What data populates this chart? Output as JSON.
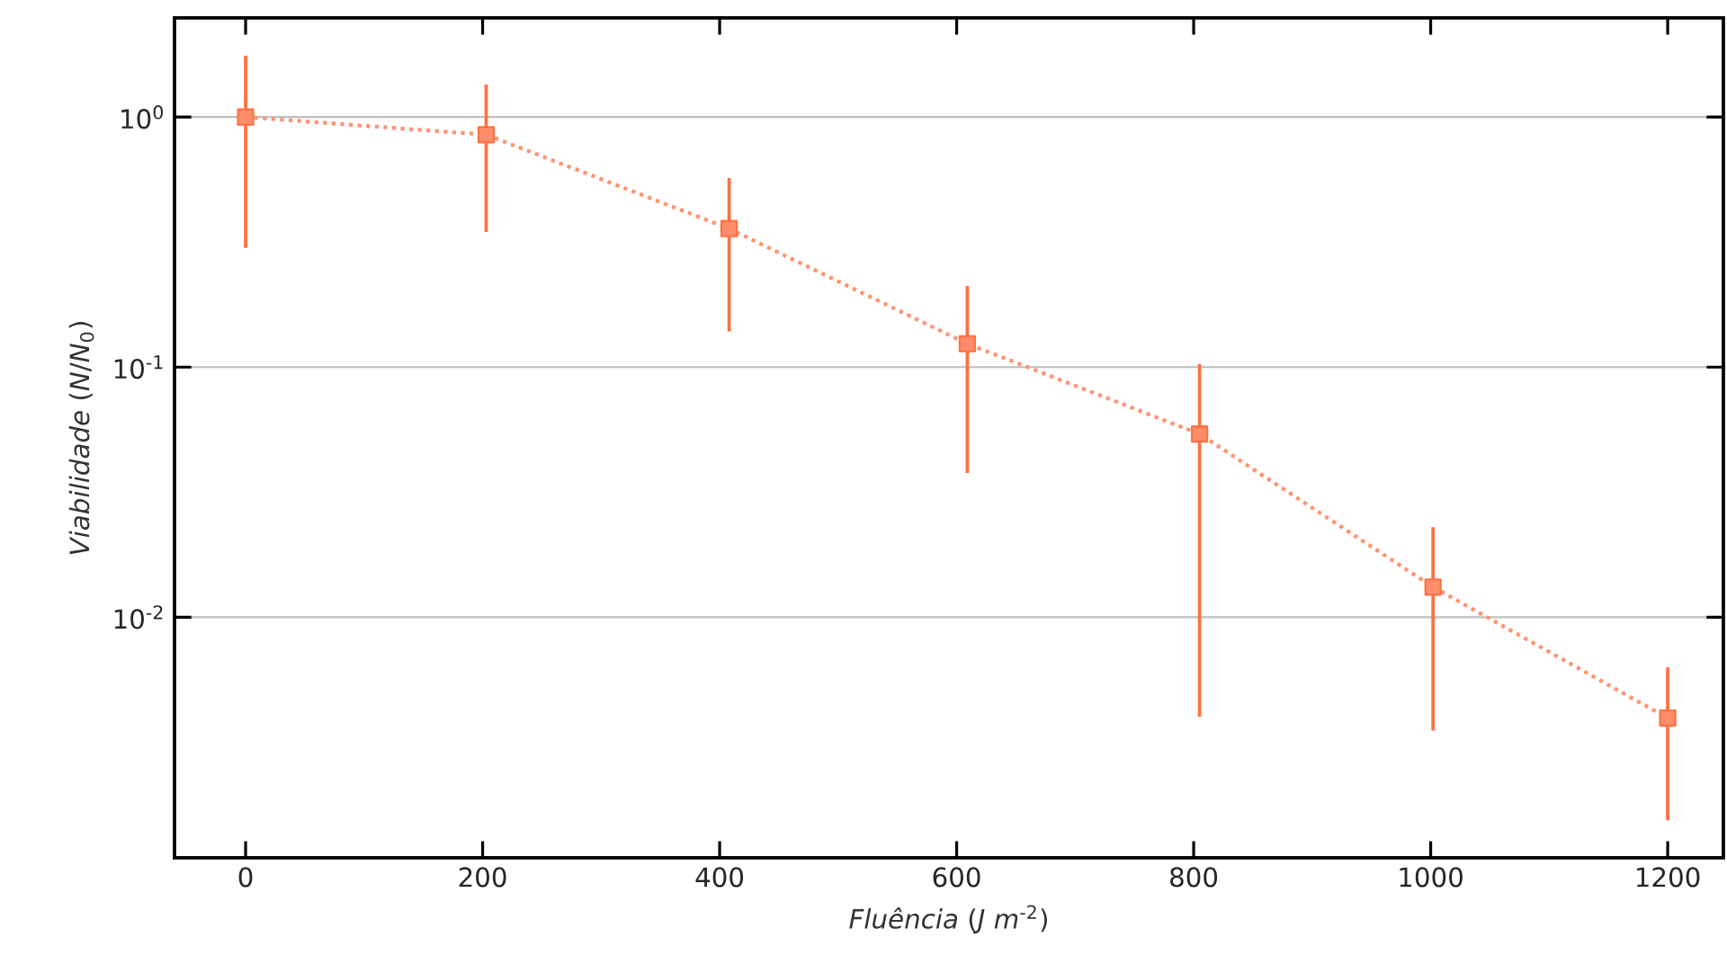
{
  "chart_data": {
    "type": "line",
    "xlabel": "*Fluência* (*J m*$^{-2}$)",
    "ylabel": "*Viabilidade* (*N*/*N*$_{0}$)",
    "log": "y",
    "grid": "y",
    "marker": "square",
    "line_style": "dotted",
    "xlim": [
      -60,
      1247
    ],
    "ylim": [
      0.00109,
      2.49
    ],
    "xticks": [
      0,
      200,
      400,
      600,
      800,
      1000,
      1200
    ],
    "yticks": [
      {
        "value": 1,
        "label": "10$^{0}$"
      },
      {
        "value": 0.1,
        "label": "10$^{-1}$"
      },
      {
        "value": 0.01,
        "label": "10$^{-2}$"
      }
    ],
    "series": [
      {
        "color": "#ff7043",
        "x": [
          0,
          203,
          408,
          609,
          805,
          1002,
          1200
        ],
        "values": [
          1.0,
          0.85,
          0.358,
          0.124,
          0.054,
          0.0132,
          0.00395
        ],
        "errors": [
          [
            0.3,
            1.76
          ],
          [
            0.347,
            1.35
          ],
          [
            0.139,
            0.57
          ],
          [
            0.0377,
            0.211
          ],
          [
            0.004,
            0.103
          ],
          [
            0.00352,
            0.0229
          ],
          [
            0.00154,
            0.0063
          ]
        ]
      }
    ]
  }
}
